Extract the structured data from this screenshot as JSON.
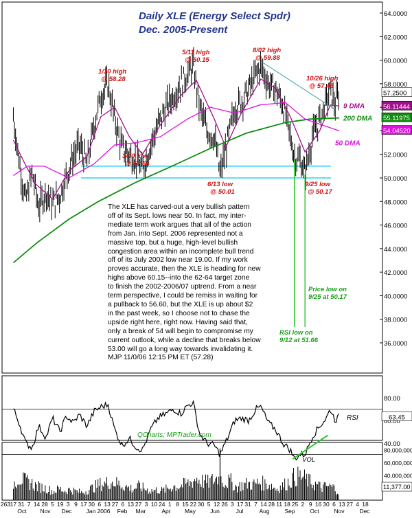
{
  "chart_data": [
    {
      "type": "line",
      "panel": "price",
      "title": "Daily XLE (Energy Select Spdr)",
      "subtitle": "Dec. 2005-Present",
      "ylim": [
        34,
        64
      ],
      "y_ticks": [
        "64.0000",
        "62.0000",
        "60.0000",
        "58.0000",
        "56.0000",
        "54.0000",
        "52.0000",
        "50.0000",
        "48.0000",
        "46.0000",
        "44.0000",
        "42.0000",
        "40.0000",
        "38.0000",
        "36.0000"
      ],
      "y_tick_values": [
        64,
        62,
        60,
        58,
        56,
        54,
        52,
        50,
        48,
        46,
        44,
        42,
        40,
        38,
        36
      ],
      "price_path": [
        [
          "2005-10-03",
          55.2
        ],
        [
          "2005-10-10",
          51.5
        ],
        [
          "2005-10-18",
          48.0
        ],
        [
          "2005-10-26",
          50.5
        ],
        [
          "2005-11-03",
          47.5
        ],
        [
          "2005-11-12",
          48.8
        ],
        [
          "2005-11-20",
          47.8
        ],
        [
          "2005-11-29",
          48.5
        ],
        [
          "2005-12-07",
          50.2
        ],
        [
          "2005-12-15",
          51.8
        ],
        [
          "2005-12-23",
          52.8
        ],
        [
          "2006-01-01",
          51.2
        ],
        [
          "2006-01-10",
          54.5
        ],
        [
          "2006-01-18",
          57.0
        ],
        [
          "2006-01-27",
          58.0
        ],
        [
          "2006-02-04",
          55.0
        ],
        [
          "2006-02-13",
          52.5
        ],
        [
          "2006-02-22",
          52.0
        ],
        [
          "2006-03-03",
          51.5
        ],
        [
          "2006-03-10",
          50.6
        ],
        [
          "2006-03-20",
          52.8
        ],
        [
          "2006-03-29",
          54.5
        ],
        [
          "2006-04-08",
          56.0
        ],
        [
          "2006-04-17",
          57.0
        ],
        [
          "2006-04-26",
          58.0
        ],
        [
          "2006-05-04",
          58.8
        ],
        [
          "2006-05-11",
          59.5
        ],
        [
          "2006-05-19",
          56.0
        ],
        [
          "2006-05-28",
          54.0
        ],
        [
          "2006-06-06",
          53.5
        ],
        [
          "2006-06-13",
          50.3
        ],
        [
          "2006-06-22",
          53.0
        ],
        [
          "2006-07-01",
          56.0
        ],
        [
          "2006-07-09",
          56.5
        ],
        [
          "2006-07-18",
          57.5
        ],
        [
          "2006-07-27",
          58.8
        ],
        [
          "2006-08-02",
          59.5
        ],
        [
          "2006-08-11",
          58.0
        ],
        [
          "2006-08-20",
          57.5
        ],
        [
          "2006-08-29",
          56.2
        ],
        [
          "2006-09-07",
          53.5
        ],
        [
          "2006-09-12",
          51.8
        ],
        [
          "2006-09-19",
          51.5
        ],
        [
          "2006-09-25",
          50.4
        ],
        [
          "2006-10-04",
          53.5
        ],
        [
          "2006-10-13",
          55.0
        ],
        [
          "2006-10-21",
          56.5
        ],
        [
          "2006-10-26",
          57.4
        ],
        [
          "2006-11-01",
          56.2
        ],
        [
          "2006-11-06",
          57.3
        ]
      ],
      "series": [
        {
          "name": "9 DMA",
          "last": "56.11444",
          "color": "#a0108c",
          "path": [
            [
              "2005-10-03",
              53.2
            ],
            [
              "2005-10-15",
              51.5
            ],
            [
              "2005-10-30",
              49.5
            ],
            [
              "2005-11-20",
              48.2
            ],
            [
              "2005-12-10",
              50.6
            ],
            [
              "2006-01-01",
              51.8
            ],
            [
              "2006-01-18",
              55.2
            ],
            [
              "2006-02-04",
              56.0
            ],
            [
              "2006-02-22",
              53.5
            ],
            [
              "2006-03-10",
              52.0
            ],
            [
              "2006-04-01",
              54.5
            ],
            [
              "2006-04-26",
              57.0
            ],
            [
              "2006-05-15",
              58.3
            ],
            [
              "2006-06-06",
              55.0
            ],
            [
              "2006-06-20",
              52.6
            ],
            [
              "2006-07-09",
              55.5
            ],
            [
              "2006-08-02",
              58.4
            ],
            [
              "2006-08-20",
              57.6
            ],
            [
              "2006-09-07",
              55.2
            ],
            [
              "2006-09-25",
              52.2
            ],
            [
              "2006-10-13",
              54.0
            ],
            [
              "2006-10-26",
              56.2
            ],
            [
              "2006-11-06",
              56.1
            ]
          ]
        },
        {
          "name": "50 DMA",
          "last": "54.04520",
          "color": "#e010e0",
          "path": [
            [
              "2005-10-03",
              50.2
            ],
            [
              "2005-10-20",
              51.0
            ],
            [
              "2005-11-10",
              51.0
            ],
            [
              "2005-12-10",
              50.0
            ],
            [
              "2006-01-10",
              51.2
            ],
            [
              "2006-02-04",
              52.8
            ],
            [
              "2006-03-03",
              53.0
            ],
            [
              "2006-04-01",
              53.5
            ],
            [
              "2006-05-04",
              55.0
            ],
            [
              "2006-06-01",
              56.0
            ],
            [
              "2006-07-01",
              55.5
            ],
            [
              "2006-08-01",
              56.2
            ],
            [
              "2006-09-01",
              56.4
            ],
            [
              "2006-09-25",
              55.0
            ],
            [
              "2006-10-20",
              54.4
            ],
            [
              "2006-11-06",
              54.0
            ]
          ]
        },
        {
          "name": "200 DMA",
          "last": "55.11975",
          "color": "#108c10",
          "path": [
            [
              "2005-10-03",
              42.8
            ],
            [
              "2005-11-01",
              44.5
            ],
            [
              "2005-12-10",
              46.5
            ],
            [
              "2006-01-15",
              48.0
            ],
            [
              "2006-03-01",
              49.6
            ],
            [
              "2006-04-15",
              51.0
            ],
            [
              "2006-06-01",
              52.5
            ],
            [
              "2006-07-15",
              53.8
            ],
            [
              "2006-09-01",
              54.7
            ],
            [
              "2006-10-01",
              55.0
            ],
            [
              "2006-11-06",
              55.1
            ]
          ]
        }
      ],
      "horizontal_lines": [
        {
          "y": 51.0,
          "color": "#00c8e8"
        },
        {
          "y": 50.0,
          "color": "#00c8e8"
        }
      ],
      "trendline": {
        "from": [
          "2006-08-02",
          59.9
        ],
        "to": [
          "2006-11-01",
          55.8
        ],
        "color": "#40a0a0"
      },
      "last_price_label": "57.2500",
      "annotations": [
        {
          "text": "1/30 high",
          "sub": "@ 58.28"
        },
        {
          "text": "5/11 high",
          "sub": "@ 60.15"
        },
        {
          "text": "8/02 high",
          "sub": "@ 59.88"
        },
        {
          "text": "10/26 high",
          "sub": "@ 57.45"
        },
        {
          "text": "3/10 low",
          "sub": "@ 50.55"
        },
        {
          "text": "6/13 low",
          "sub": "@ 50.01"
        },
        {
          "text": "9/25 low",
          "sub": "@ 50.17"
        },
        {
          "text": "Price low on",
          "sub": "9/25 at 50.17"
        },
        {
          "text": "RSI low on",
          "sub": "9/12 at 51.66"
        }
      ],
      "commentary": [
        "The XLE has carved-out a very bullish pattern",
        "off of its Sept. lows near 50. In fact, my inter-",
        "mediate term work argues that all of the action",
        "from Jan. into Sept. 2006 represented not a",
        "massive top, but a huge, high-level bullish",
        "congestion area within an incomplete bull trend",
        "off of its July 2002 low near 19.00. If my work",
        "proves accurate, then the XLE is heading for new",
        "highs above 60.15--into the 62-64 target zone",
        "to finish the 2002-2006/07 uptrend. From a near",
        "term perspective, I could be remiss in waiting for",
        "a pullback to 56.60, but the XLE is up about $2",
        "in the past week, so I choose not to chase the",
        "upside right here, right now. Having said that,",
        "only a break of 54 will begin to compromise my",
        "current outlook, while a decline that breaks below",
        "53.00 will go a long way towards invalidating it.",
        "MJP 11/0/06 12:15 PM ET (57.28)"
      ]
    },
    {
      "type": "line",
      "panel": "rsi",
      "series": [
        {
          "name": "RSI",
          "last": "63.45"
        }
      ],
      "ylim": [
        20,
        90
      ],
      "y_ticks": [
        "80.00",
        "60.00",
        "40.00"
      ],
      "y_tick_values": [
        80,
        60,
        40
      ],
      "reference_lines": [
        70,
        30
      ],
      "rsi_path": [
        [
          "2005-10-03",
          70
        ],
        [
          "2005-10-10",
          58
        ],
        [
          "2005-10-18",
          40
        ],
        [
          "2005-10-26",
          36
        ],
        [
          "2005-11-03",
          55
        ],
        [
          "2005-11-12",
          45
        ],
        [
          "2005-11-20",
          62
        ],
        [
          "2005-11-29",
          50
        ],
        [
          "2005-12-07",
          64
        ],
        [
          "2005-12-15",
          58
        ],
        [
          "2005-12-23",
          65
        ],
        [
          "2006-01-01",
          55
        ],
        [
          "2006-01-10",
          68
        ],
        [
          "2006-01-18",
          72
        ],
        [
          "2006-01-27",
          74
        ],
        [
          "2006-02-04",
          52
        ],
        [
          "2006-02-13",
          38
        ],
        [
          "2006-02-22",
          44
        ],
        [
          "2006-03-03",
          36
        ],
        [
          "2006-03-10",
          34
        ],
        [
          "2006-03-20",
          52
        ],
        [
          "2006-03-29",
          62
        ],
        [
          "2006-04-08",
          66
        ],
        [
          "2006-04-17",
          70
        ],
        [
          "2006-04-26",
          66
        ],
        [
          "2006-05-04",
          73
        ],
        [
          "2006-05-11",
          76
        ],
        [
          "2006-05-19",
          48
        ],
        [
          "2006-05-28",
          40
        ],
        [
          "2006-06-06",
          38
        ],
        [
          "2006-06-13",
          30
        ],
        [
          "2006-06-22",
          44
        ],
        [
          "2006-07-01",
          60
        ],
        [
          "2006-07-09",
          62
        ],
        [
          "2006-07-18",
          60
        ],
        [
          "2006-07-27",
          70
        ],
        [
          "2006-08-02",
          72
        ],
        [
          "2006-08-11",
          58
        ],
        [
          "2006-08-20",
          52
        ],
        [
          "2006-08-29",
          40
        ],
        [
          "2006-09-07",
          34
        ],
        [
          "2006-09-12",
          26
        ],
        [
          "2006-09-19",
          30
        ],
        [
          "2006-09-25",
          30
        ],
        [
          "2006-10-04",
          46
        ],
        [
          "2006-10-13",
          55
        ],
        [
          "2006-10-21",
          62
        ],
        [
          "2006-10-26",
          70
        ],
        [
          "2006-11-01",
          60
        ],
        [
          "2006-11-06",
          63.5
        ]
      ],
      "trendline": {
        "from": [
          "2006-09-10",
          26
        ],
        "to": [
          "2006-10-23",
          47
        ],
        "color": "#28c828"
      },
      "credit": "QCharts; MPTrader.com"
    },
    {
      "type": "bar",
      "panel": "volume",
      "label": "VOL",
      "last": "11,377.00",
      "ylim": [
        0,
        85000000
      ],
      "y_ticks": [
        "80,000,000",
        "60,000,000",
        "40,000,000",
        "20,000,000"
      ],
      "y_tick_values": [
        80000000,
        60000000,
        40000000,
        20000000
      ],
      "volume_by_week": [
        [
          "2005-10-03",
          26
        ],
        [
          "2005-10-10",
          36
        ],
        [
          "2005-10-17",
          30
        ],
        [
          "2005-10-24",
          28
        ],
        [
          "2005-10-31",
          22
        ],
        [
          "2005-11-07",
          20
        ],
        [
          "2005-11-14",
          18
        ],
        [
          "2005-11-21",
          14
        ],
        [
          "2005-11-28",
          18
        ],
        [
          "2005-12-05",
          15
        ],
        [
          "2005-12-12",
          17
        ],
        [
          "2005-12-19",
          14
        ],
        [
          "2005-12-26",
          12
        ],
        [
          "2006-01-02",
          16
        ],
        [
          "2006-01-09",
          20
        ],
        [
          "2006-01-16",
          25
        ],
        [
          "2006-01-23",
          26
        ],
        [
          "2006-01-30",
          30
        ],
        [
          "2006-02-06",
          27
        ],
        [
          "2006-02-13",
          24
        ],
        [
          "2006-02-20",
          20
        ],
        [
          "2006-02-27",
          18
        ],
        [
          "2006-03-06",
          22
        ],
        [
          "2006-03-13",
          18
        ],
        [
          "2006-03-20",
          15
        ],
        [
          "2006-03-27",
          16
        ],
        [
          "2006-04-03",
          15
        ],
        [
          "2006-04-10",
          18
        ],
        [
          "2006-04-17",
          22
        ],
        [
          "2006-04-24",
          22
        ],
        [
          "2006-05-01",
          25
        ],
        [
          "2006-05-08",
          28
        ],
        [
          "2006-05-15",
          35
        ],
        [
          "2006-05-22",
          30
        ],
        [
          "2006-05-29",
          28
        ],
        [
          "2006-06-05",
          32
        ],
        [
          "2006-06-12",
          36
        ],
        [
          "2006-06-19",
          28
        ],
        [
          "2006-06-26",
          30
        ],
        [
          "2006-07-03",
          20
        ],
        [
          "2006-07-10",
          24
        ],
        [
          "2006-07-17",
          26
        ],
        [
          "2006-07-24",
          25
        ],
        [
          "2006-07-31",
          28
        ],
        [
          "2006-08-07",
          26
        ],
        [
          "2006-08-14",
          24
        ],
        [
          "2006-08-21",
          18
        ],
        [
          "2006-08-28",
          22
        ],
        [
          "2006-09-04",
          28
        ],
        [
          "2006-09-11",
          36
        ],
        [
          "2006-09-18",
          38
        ],
        [
          "2006-09-25",
          34
        ],
        [
          "2006-10-02",
          28
        ],
        [
          "2006-10-09",
          24
        ],
        [
          "2006-10-16",
          20
        ],
        [
          "2006-10-23",
          22
        ],
        [
          "2006-10-30",
          20
        ],
        [
          "2006-11-06",
          12
        ]
      ],
      "volume_unit_millions": true,
      "spike": [
        "2006-06-13",
        82
      ]
    }
  ],
  "x_axis": {
    "day_ticks": [
      "263",
      "17",
      "31",
      "7",
      "14",
      "28",
      "5",
      "19",
      "3",
      "9",
      "17",
      "30",
      "6",
      "13",
      "27",
      "6",
      "13",
      "27",
      "3",
      "10",
      "24",
      "1",
      "8",
      "15",
      "22",
      "30",
      "5",
      "12",
      "26",
      "3",
      "17",
      "31",
      "7",
      "14",
      "28",
      "11",
      "18",
      "25",
      "2",
      "9",
      "16",
      "30",
      "6",
      "13",
      "27",
      "4",
      "18"
    ],
    "month_labels": [
      "Oct",
      "Nov",
      "Dec",
      "Jan 2006",
      "Feb",
      "Mar",
      "Apr",
      "May",
      "Jun",
      "Jul",
      "Aug",
      "Sep",
      "Oct",
      "Nov",
      "Dec"
    ]
  }
}
